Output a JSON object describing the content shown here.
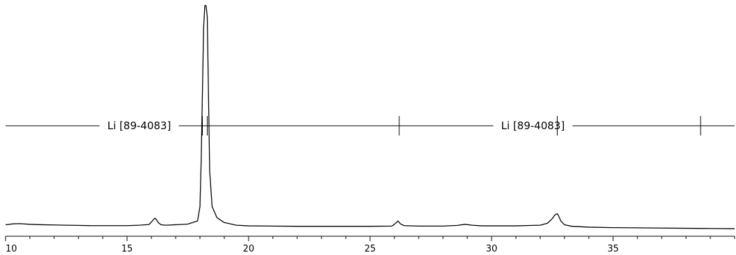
{
  "chart_data": {
    "type": "line",
    "title": "",
    "xlabel": "",
    "ylabel": "",
    "xlim": [
      10,
      40
    ],
    "ylim": [
      0,
      100
    ],
    "x_major_ticks": [
      10,
      15,
      20,
      25,
      30,
      35
    ],
    "x_minor_step": 1,
    "grid": false,
    "legend": "none",
    "line_color": "#000000",
    "series": [
      {
        "x": [
          10.0,
          10.3,
          10.6,
          11.0,
          11.5,
          12.0,
          12.5,
          13.0,
          13.5,
          14.0,
          14.5,
          15.0,
          15.5,
          15.9,
          16.0,
          16.1,
          16.15,
          16.2,
          16.3,
          16.4,
          16.6,
          17.0,
          17.5,
          17.9,
          18.0,
          18.05,
          18.1,
          18.15,
          18.2,
          18.25,
          18.3,
          18.35,
          18.4,
          18.5,
          18.7,
          19.0,
          19.5,
          20.0,
          21.0,
          22.0,
          23.0,
          24.0,
          25.0,
          25.9,
          26.0,
          26.1,
          26.15,
          26.25,
          26.4,
          27.0,
          28.0,
          28.6,
          28.9,
          29.2,
          29.6,
          30.0,
          31.0,
          32.0,
          32.3,
          32.5,
          32.6,
          32.7,
          32.75,
          32.85,
          33.0,
          33.3,
          34.0,
          35.0,
          36.0,
          37.0,
          38.0,
          39.0,
          40.0
        ],
        "y": [
          0.8,
          1.2,
          1.3,
          1.0,
          0.8,
          0.7,
          0.6,
          0.5,
          0.4,
          0.4,
          0.4,
          0.4,
          0.6,
          0.9,
          2.0,
          3.3,
          3.8,
          3.2,
          1.6,
          0.8,
          0.6,
          0.8,
          1.1,
          2.5,
          9.0,
          30.0,
          60.0,
          90.0,
          100.0,
          100.0,
          95.0,
          60.0,
          25.0,
          9.0,
          4.0,
          1.8,
          0.6,
          0.3,
          0.2,
          0.1,
          0.1,
          0.1,
          0.1,
          0.2,
          1.0,
          2.0,
          2.5,
          1.2,
          0.4,
          0.2,
          0.2,
          0.5,
          1.0,
          0.6,
          0.3,
          0.3,
          0.3,
          0.6,
          1.5,
          3.6,
          5.2,
          5.8,
          5.0,
          2.5,
          0.8,
          0.1,
          -0.3,
          -0.5,
          -0.6,
          -0.7,
          -0.8,
          -0.9,
          -1.0
        ]
      }
    ],
    "reference_patterns": [
      {
        "label": "Li [89-4083]",
        "label_x": 15.5,
        "peak_positions": [
          18.1,
          18.3,
          26.2
        ]
      },
      {
        "label": "Li [89-4083]",
        "label_x": 31.7,
        "peak_positions": [
          32.7,
          38.6
        ]
      }
    ]
  }
}
